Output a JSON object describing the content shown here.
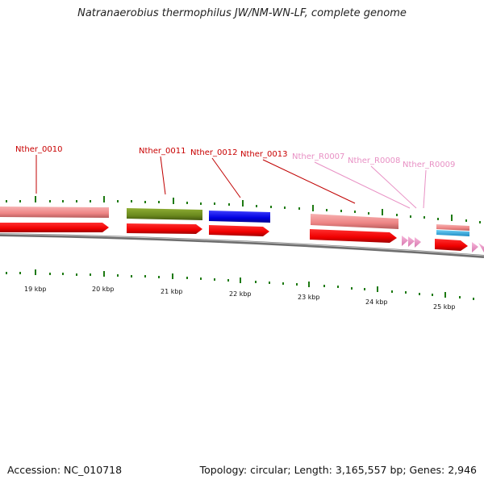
{
  "title": "Natranaerobius thermophilus JW/NM-WN-LF, complete genome",
  "footer": {
    "accession": "Accession: NC_010718",
    "stats": "Topology: circular; Length: 3,165,557 bp; Genes: 2,946"
  },
  "gene_labels": [
    "Nther_0010",
    "Nther_0011",
    "Nther_0012",
    "Nther_0013",
    "Nther_R0007",
    "Nther_R0008",
    "Nther_R0009"
  ],
  "kbp_ticks": [
    "19 kbp",
    "20 kbp",
    "21 kbp",
    "22 kbp",
    "23 kbp",
    "24 kbp",
    "25 kbp"
  ],
  "colors": {
    "protein_gene": "#d40000",
    "rna_gene": "#e98fc4",
    "feature_pink": "#f08a8a",
    "feature_olive": "#6b8a1e",
    "feature_blue": "#0000e0",
    "feature_cyan": "#2aa8e0",
    "tick_green": "#1e7a12",
    "backbone": "#808080"
  }
}
